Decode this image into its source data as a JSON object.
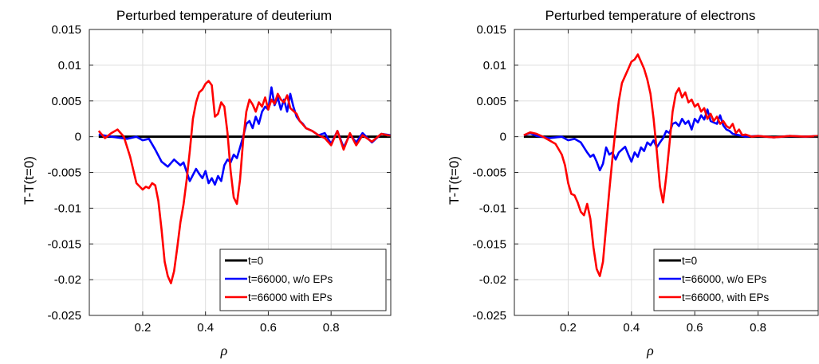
{
  "chart_data": [
    {
      "type": "line",
      "title": "Perturbed temperature of deuterium",
      "xlabel": "ρ",
      "ylabel": "T-T(t=0)",
      "xlim": [
        0.03,
        0.99
      ],
      "ylim": [
        -0.025,
        0.015
      ],
      "xticks": [
        0.2,
        0.4,
        0.6,
        0.8
      ],
      "xtick_labels": [
        "0.2",
        "0.4",
        "0.6",
        "0.8"
      ],
      "yticks": [
        0.015,
        0.01,
        0.005,
        0,
        -0.005,
        -0.01,
        -0.015,
        -0.02,
        -0.025
      ],
      "ytick_labels": [
        "0.015",
        "0.01",
        "0.005",
        "0",
        "-0.005",
        "-0.01",
        "-0.015",
        "-0.02",
        "-0.025"
      ],
      "grid": true,
      "legend_position": "bottom-right",
      "series": [
        {
          "name": "t=0",
          "color": "#000000",
          "x": [
            0.06,
            0.99
          ],
          "y": [
            0,
            0
          ]
        },
        {
          "name": "t=66000, w/o EPs",
          "color": "#0000ff",
          "x": [
            0.06,
            0.1,
            0.15,
            0.18,
            0.2,
            0.22,
            0.24,
            0.26,
            0.28,
            0.3,
            0.32,
            0.33,
            0.35,
            0.37,
            0.38,
            0.39,
            0.4,
            0.41,
            0.42,
            0.43,
            0.44,
            0.45,
            0.46,
            0.47,
            0.48,
            0.49,
            0.5,
            0.51,
            0.52,
            0.53,
            0.54,
            0.55,
            0.56,
            0.57,
            0.58,
            0.59,
            0.6,
            0.61,
            0.62,
            0.63,
            0.64,
            0.65,
            0.66,
            0.67,
            0.68,
            0.69,
            0.7,
            0.71,
            0.72,
            0.74,
            0.76,
            0.78,
            0.8,
            0.82,
            0.84,
            0.86,
            0.88,
            0.9,
            0.93,
            0.96,
            0.99
          ],
          "y": [
            0.0003,
            0.0,
            -0.0003,
            0.0,
            -0.0005,
            -0.0003,
            -0.0018,
            -0.0035,
            -0.0042,
            -0.0032,
            -0.004,
            -0.0036,
            -0.0062,
            -0.0045,
            -0.0052,
            -0.0058,
            -0.0048,
            -0.0065,
            -0.0058,
            -0.0067,
            -0.0055,
            -0.0062,
            -0.004,
            -0.0032,
            -0.0036,
            -0.0025,
            -0.003,
            -0.0015,
            0.0,
            0.0018,
            0.0022,
            0.0012,
            0.0028,
            0.0018,
            0.0035,
            0.0042,
            0.0038,
            0.0069,
            0.0044,
            0.0055,
            0.0038,
            0.0052,
            0.0035,
            0.006,
            0.0042,
            0.0028,
            0.0022,
            0.0018,
            0.0012,
            0.0008,
            0.0002,
            0.0005,
            -0.001,
            0.0008,
            -0.0015,
            0.0003,
            -0.0008,
            0.0005,
            -0.0008,
            0.0004,
            0.0002
          ]
        },
        {
          "name": "t=66000 with EPs",
          "color": "#ff0000",
          "x": [
            0.06,
            0.08,
            0.1,
            0.12,
            0.14,
            0.16,
            0.18,
            0.2,
            0.21,
            0.22,
            0.23,
            0.24,
            0.25,
            0.26,
            0.27,
            0.28,
            0.29,
            0.3,
            0.31,
            0.32,
            0.33,
            0.34,
            0.35,
            0.36,
            0.37,
            0.38,
            0.39,
            0.4,
            0.41,
            0.42,
            0.43,
            0.44,
            0.45,
            0.46,
            0.47,
            0.48,
            0.49,
            0.5,
            0.51,
            0.52,
            0.53,
            0.54,
            0.55,
            0.56,
            0.57,
            0.58,
            0.59,
            0.6,
            0.61,
            0.62,
            0.63,
            0.64,
            0.65,
            0.66,
            0.67,
            0.68,
            0.69,
            0.7,
            0.72,
            0.74,
            0.76,
            0.78,
            0.8,
            0.82,
            0.84,
            0.86,
            0.88,
            0.9,
            0.93,
            0.96,
            0.99
          ],
          "y": [
            0.0008,
            -0.0002,
            0.0005,
            0.001,
            0.0,
            -0.0028,
            -0.0065,
            -0.0074,
            -0.007,
            -0.0072,
            -0.0065,
            -0.0068,
            -0.009,
            -0.013,
            -0.0175,
            -0.0195,
            -0.0205,
            -0.0188,
            -0.0155,
            -0.012,
            -0.0095,
            -0.006,
            -0.002,
            0.0025,
            0.0048,
            0.0062,
            0.0066,
            0.0074,
            0.0078,
            0.0072,
            0.0028,
            0.0032,
            0.0048,
            0.0042,
            0.0005,
            -0.0048,
            -0.0085,
            -0.0094,
            -0.006,
            -0.0005,
            0.0035,
            0.0052,
            0.0045,
            0.0035,
            0.0048,
            0.0042,
            0.0055,
            0.0038,
            0.0052,
            0.0046,
            0.006,
            0.0052,
            0.0048,
            0.0058,
            0.004,
            0.0036,
            0.0032,
            0.0022,
            0.0012,
            0.0008,
            0.0002,
            -0.0002,
            -0.0012,
            0.0008,
            -0.0018,
            0.0005,
            -0.0012,
            0.0002,
            -0.0007,
            0.0004,
            0.0001
          ]
        }
      ]
    },
    {
      "type": "line",
      "title": "Perturbed temperature of electrons",
      "xlabel": "ρ",
      "ylabel": "T-T(t=0)",
      "xlim": [
        0.03,
        0.99
      ],
      "ylim": [
        -0.025,
        0.015
      ],
      "xticks": [
        0.2,
        0.4,
        0.6,
        0.8
      ],
      "xtick_labels": [
        "0.2",
        "0.4",
        "0.6",
        "0.8"
      ],
      "yticks": [
        0.015,
        0.01,
        0.005,
        0,
        -0.005,
        -0.01,
        -0.015,
        -0.02,
        -0.025
      ],
      "ytick_labels": [
        "0.015",
        "0.01",
        "0.005",
        "0",
        "-0.005",
        "-0.01",
        "-0.015",
        "-0.02",
        "-0.025"
      ],
      "grid": true,
      "legend_position": "bottom-right",
      "series": [
        {
          "name": "t=0",
          "color": "#000000",
          "x": [
            0.06,
            0.99
          ],
          "y": [
            0,
            0
          ]
        },
        {
          "name": "t=66000, w/o EPs",
          "color": "#0000ff",
          "x": [
            0.06,
            0.08,
            0.1,
            0.14,
            0.18,
            0.2,
            0.22,
            0.24,
            0.26,
            0.27,
            0.28,
            0.29,
            0.3,
            0.31,
            0.32,
            0.33,
            0.34,
            0.35,
            0.36,
            0.37,
            0.38,
            0.39,
            0.4,
            0.41,
            0.42,
            0.43,
            0.44,
            0.45,
            0.46,
            0.47,
            0.48,
            0.49,
            0.5,
            0.51,
            0.52,
            0.53,
            0.54,
            0.55,
            0.56,
            0.57,
            0.58,
            0.59,
            0.6,
            0.61,
            0.62,
            0.63,
            0.64,
            0.65,
            0.66,
            0.67,
            0.68,
            0.69,
            0.7,
            0.71,
            0.72,
            0.74,
            0.76,
            0.8,
            0.85,
            0.9,
            0.95,
            0.99
          ],
          "y": [
            0.0002,
            0.0005,
            0.0001,
            -0.0002,
            0.0,
            -0.0005,
            -0.0003,
            -0.0008,
            -0.0022,
            -0.0028,
            -0.0025,
            -0.0035,
            -0.0047,
            -0.0038,
            -0.0015,
            -0.0025,
            -0.0022,
            -0.0032,
            -0.0022,
            -0.0018,
            -0.0014,
            -0.0025,
            -0.0035,
            -0.0022,
            -0.0028,
            -0.0015,
            -0.002,
            -0.0008,
            -0.0012,
            -0.0005,
            -0.0015,
            -0.0008,
            -0.0002,
            0.0008,
            0.0005,
            0.0018,
            0.002,
            0.0015,
            0.0025,
            0.0018,
            0.0022,
            0.001,
            0.0025,
            0.002,
            0.003,
            0.0024,
            0.0038,
            0.0022,
            0.002,
            0.0018,
            0.003,
            0.0016,
            0.001,
            0.0008,
            0.0004,
            0.0002,
            0.0,
            0.0001,
            -0.0001,
            0.0001,
            0.0,
            0.0001
          ]
        },
        {
          "name": "t=66000, with EPs",
          "color": "#ff0000",
          "x": [
            0.06,
            0.08,
            0.1,
            0.12,
            0.14,
            0.16,
            0.18,
            0.19,
            0.2,
            0.21,
            0.22,
            0.23,
            0.24,
            0.25,
            0.26,
            0.27,
            0.28,
            0.29,
            0.3,
            0.31,
            0.32,
            0.33,
            0.34,
            0.35,
            0.36,
            0.37,
            0.38,
            0.39,
            0.4,
            0.41,
            0.42,
            0.43,
            0.44,
            0.45,
            0.46,
            0.47,
            0.48,
            0.49,
            0.5,
            0.51,
            0.52,
            0.53,
            0.54,
            0.55,
            0.56,
            0.57,
            0.58,
            0.59,
            0.6,
            0.61,
            0.62,
            0.63,
            0.64,
            0.65,
            0.66,
            0.67,
            0.68,
            0.69,
            0.7,
            0.71,
            0.72,
            0.73,
            0.74,
            0.75,
            0.76,
            0.78,
            0.8,
            0.85,
            0.9,
            0.95,
            0.99
          ],
          "y": [
            0.0002,
            0.0006,
            0.0004,
            0.0,
            -0.0005,
            -0.001,
            -0.0025,
            -0.004,
            -0.0065,
            -0.008,
            -0.0082,
            -0.0092,
            -0.0105,
            -0.011,
            -0.0094,
            -0.0115,
            -0.0155,
            -0.0185,
            -0.0195,
            -0.0175,
            -0.0125,
            -0.0075,
            -0.003,
            0.0012,
            0.005,
            0.0075,
            0.0085,
            0.0095,
            0.0105,
            0.0108,
            0.0115,
            0.0105,
            0.0095,
            0.008,
            0.006,
            0.0025,
            -0.002,
            -0.007,
            -0.0092,
            -0.0055,
            -0.001,
            0.0035,
            0.006,
            0.0068,
            0.0055,
            0.0062,
            0.0048,
            0.0052,
            0.0042,
            0.0046,
            0.0035,
            0.004,
            0.0025,
            0.0032,
            0.0022,
            0.0028,
            0.0018,
            0.0022,
            0.0015,
            0.0012,
            0.0018,
            0.0005,
            0.001,
            0.0002,
            0.0003,
            0.0,
            0.0001,
            -0.0001,
            0.0001,
            0.0,
            0.0001
          ]
        }
      ]
    }
  ]
}
